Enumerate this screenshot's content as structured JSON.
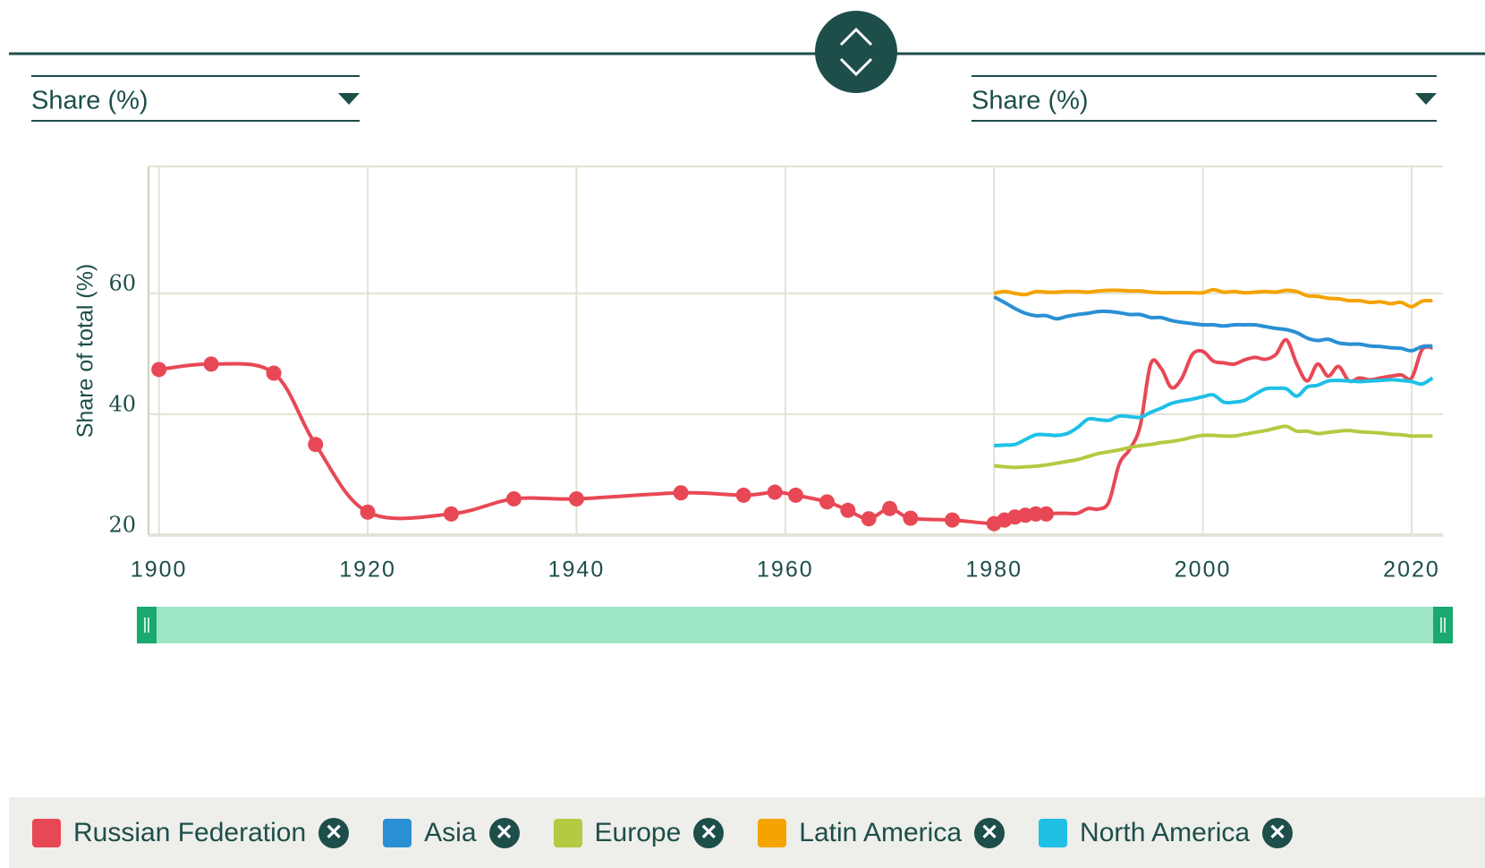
{
  "controls": {
    "left_dropdown": "Share (%)",
    "right_dropdown": "Share (%)"
  },
  "chart_data": {
    "type": "line",
    "y_label": "Share of total (%)",
    "x": [
      1900,
      1905,
      1911,
      1915,
      1920,
      1928,
      1934,
      1940,
      1950,
      1956,
      1959,
      1961,
      1964,
      1966,
      1968,
      1970,
      1972,
      1976,
      1980,
      1981,
      1982,
      1983,
      1984,
      1985,
      1986,
      1987,
      1988,
      1989,
      1990,
      1991,
      1992,
      1993,
      1994,
      1995,
      1996,
      1997,
      1998,
      1999,
      2000,
      2001,
      2002,
      2003,
      2004,
      2005,
      2006,
      2007,
      2008,
      2009,
      2010,
      2011,
      2012,
      2013,
      2014,
      2015,
      2016,
      2017,
      2018,
      2019,
      2020,
      2021,
      2022
    ],
    "series": [
      {
        "name": "Russian Federation",
        "color": "#e84855",
        "values": [
          47.4,
          48.3,
          46.8,
          35,
          23.8,
          23.5,
          26,
          26,
          27,
          26.6,
          27.1,
          26.6,
          25.5,
          24.1,
          22.7,
          24.4,
          22.8,
          22.5,
          21.9,
          22.5,
          23,
          23.3,
          23.5,
          23.5,
          23.6,
          23.6,
          23.6,
          24.4,
          24.3,
          25.5,
          31.8,
          34.2,
          38.1,
          48.3,
          47.6,
          44.4,
          46,
          49.9,
          50.4,
          48.8,
          48.5,
          48.3,
          49,
          49.4,
          49.1,
          49.9,
          52.3,
          48.3,
          45.5,
          48.3,
          46.3,
          47.9,
          45.5,
          46,
          45.7,
          46,
          46.3,
          46.5,
          46,
          50.7,
          51
        ]
      },
      {
        "name": "Asia",
        "color": "#2a8fd4",
        "values": [
          null,
          null,
          null,
          null,
          null,
          null,
          null,
          null,
          null,
          null,
          null,
          null,
          null,
          null,
          null,
          null,
          null,
          null,
          59.4,
          58.5,
          57.5,
          56.7,
          56.3,
          56.3,
          55.8,
          56.2,
          56.5,
          56.7,
          57,
          57,
          56.8,
          56.5,
          56.5,
          56,
          56,
          55.5,
          55.2,
          55,
          54.8,
          54.8,
          54.6,
          54.8,
          54.8,
          54.8,
          54.5,
          54.2,
          54,
          53.5,
          52.6,
          52.2,
          52.4,
          51.8,
          51.6,
          51.6,
          51.3,
          51.2,
          51,
          50.9,
          50.5,
          51.2,
          51.3
        ]
      },
      {
        "name": "Europe",
        "color": "#b5c942",
        "values": [
          null,
          null,
          null,
          null,
          null,
          null,
          null,
          null,
          null,
          null,
          null,
          null,
          null,
          null,
          null,
          null,
          null,
          null,
          31.5,
          31.3,
          31.2,
          31.3,
          31.4,
          31.6,
          31.9,
          32.2,
          32.5,
          33,
          33.5,
          33.8,
          34.1,
          34.5,
          34.8,
          35,
          35.3,
          35.5,
          35.8,
          36.2,
          36.5,
          36.5,
          36.4,
          36.4,
          36.7,
          37,
          37.3,
          37.7,
          38,
          37.2,
          37.2,
          36.8,
          37,
          37.2,
          37.3,
          37.1,
          37,
          36.9,
          36.7,
          36.6,
          36.4,
          36.4,
          36.4
        ]
      },
      {
        "name": "Latin America",
        "color": "#f4a300",
        "values": [
          null,
          null,
          null,
          null,
          null,
          null,
          null,
          null,
          null,
          null,
          null,
          null,
          null,
          null,
          null,
          null,
          null,
          null,
          60,
          60.3,
          60,
          59.8,
          60.3,
          60.2,
          60.2,
          60.3,
          60.3,
          60.2,
          60.4,
          60.5,
          60.5,
          60.4,
          60.4,
          60.2,
          60.1,
          60.1,
          60.1,
          60.1,
          60.1,
          60.6,
          60.2,
          60.3,
          60.1,
          60.2,
          60.3,
          60.2,
          60.5,
          60.3,
          59.6,
          59.5,
          59.2,
          59.1,
          58.8,
          58.8,
          58.5,
          58.6,
          58.3,
          58.5,
          57.8,
          58.7,
          58.8
        ]
      },
      {
        "name": "North America",
        "color": "#1ec0e6",
        "values": [
          null,
          null,
          null,
          null,
          null,
          null,
          null,
          null,
          null,
          null,
          null,
          null,
          null,
          null,
          null,
          null,
          null,
          null,
          34.8,
          34.9,
          35,
          35.8,
          36.6,
          36.6,
          36.5,
          36.8,
          37.8,
          39.2,
          39.1,
          39,
          39.7,
          39.6,
          39.5,
          40.3,
          41,
          41.8,
          42.2,
          42.5,
          42.9,
          43.2,
          42,
          42,
          42.3,
          43.3,
          44.2,
          44.3,
          44.2,
          43,
          44.5,
          44.8,
          45.5,
          45.6,
          45.5,
          45.4,
          45.5,
          45.6,
          45.7,
          45.6,
          45.4,
          45,
          46
        ]
      }
    ],
    "xlim": [
      1899,
      2023
    ],
    "xticks": [
      1900,
      1920,
      1940,
      1960,
      1980,
      2000,
      2020
    ],
    "ylim": [
      20,
      81
    ],
    "yticks": [
      20,
      40,
      60
    ],
    "grid": true
  }
}
